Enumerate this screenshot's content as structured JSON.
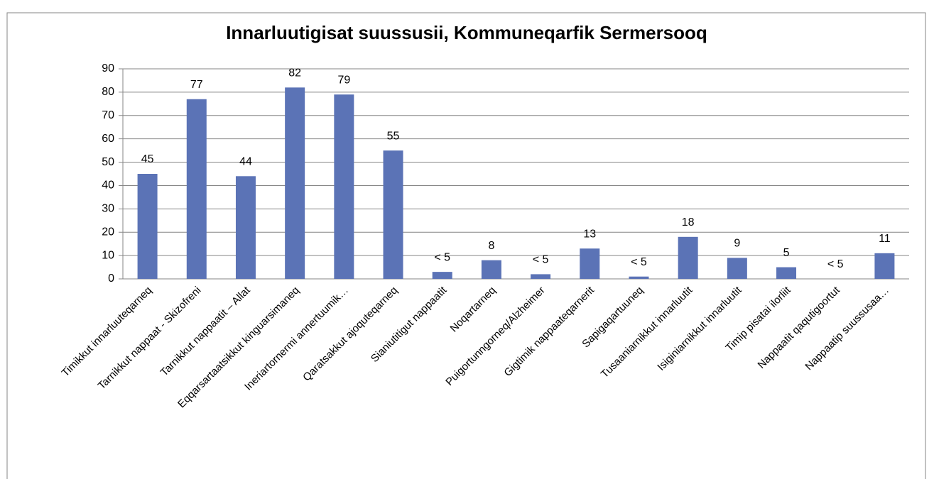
{
  "chart_data": {
    "type": "bar",
    "title": "Innarluutigisat suussusii, Kommuneqarfik Sermersooq",
    "categories": [
      "Timikkut innarluuteqarneq",
      "Tarnikkut nappaat - Skizofreni",
      "Tarnikkut nappaatit – Allat",
      "Eqqarsartaatsikkut kinguarsimaneq",
      "Ineriartornermi annertuumik…",
      "Qaratsakkut ajoquteqarneq",
      "Sianiutitigut nappaatit",
      "Noqartarneq",
      "Puigortunngorneq/Alzheimer",
      "Gigtimik nappaateqarnerit",
      "Sapigaqartuuneq",
      "Tusaaniarnikkut innarluutit",
      "Isiginiarnikkut innarluutit",
      "Timip pisatai ilorliit",
      "Nappaatit qaqutigoortut",
      "Nappaatip suussusaa…"
    ],
    "values": [
      45,
      77,
      44,
      82,
      79,
      55,
      3,
      8,
      2,
      13,
      1,
      18,
      9,
      5,
      0,
      11
    ],
    "value_labels": [
      "45",
      "77",
      "44",
      "82",
      "79",
      "55",
      "< 5",
      "8",
      "< 5",
      "13",
      "< 5",
      "18",
      "9",
      "5",
      "< 5",
      "11"
    ],
    "color": "#5b73b6",
    "ylim": [
      0,
      90
    ],
    "yticks": [
      0,
      10,
      20,
      30,
      40,
      50,
      60,
      70,
      80,
      90
    ],
    "grid": true
  }
}
